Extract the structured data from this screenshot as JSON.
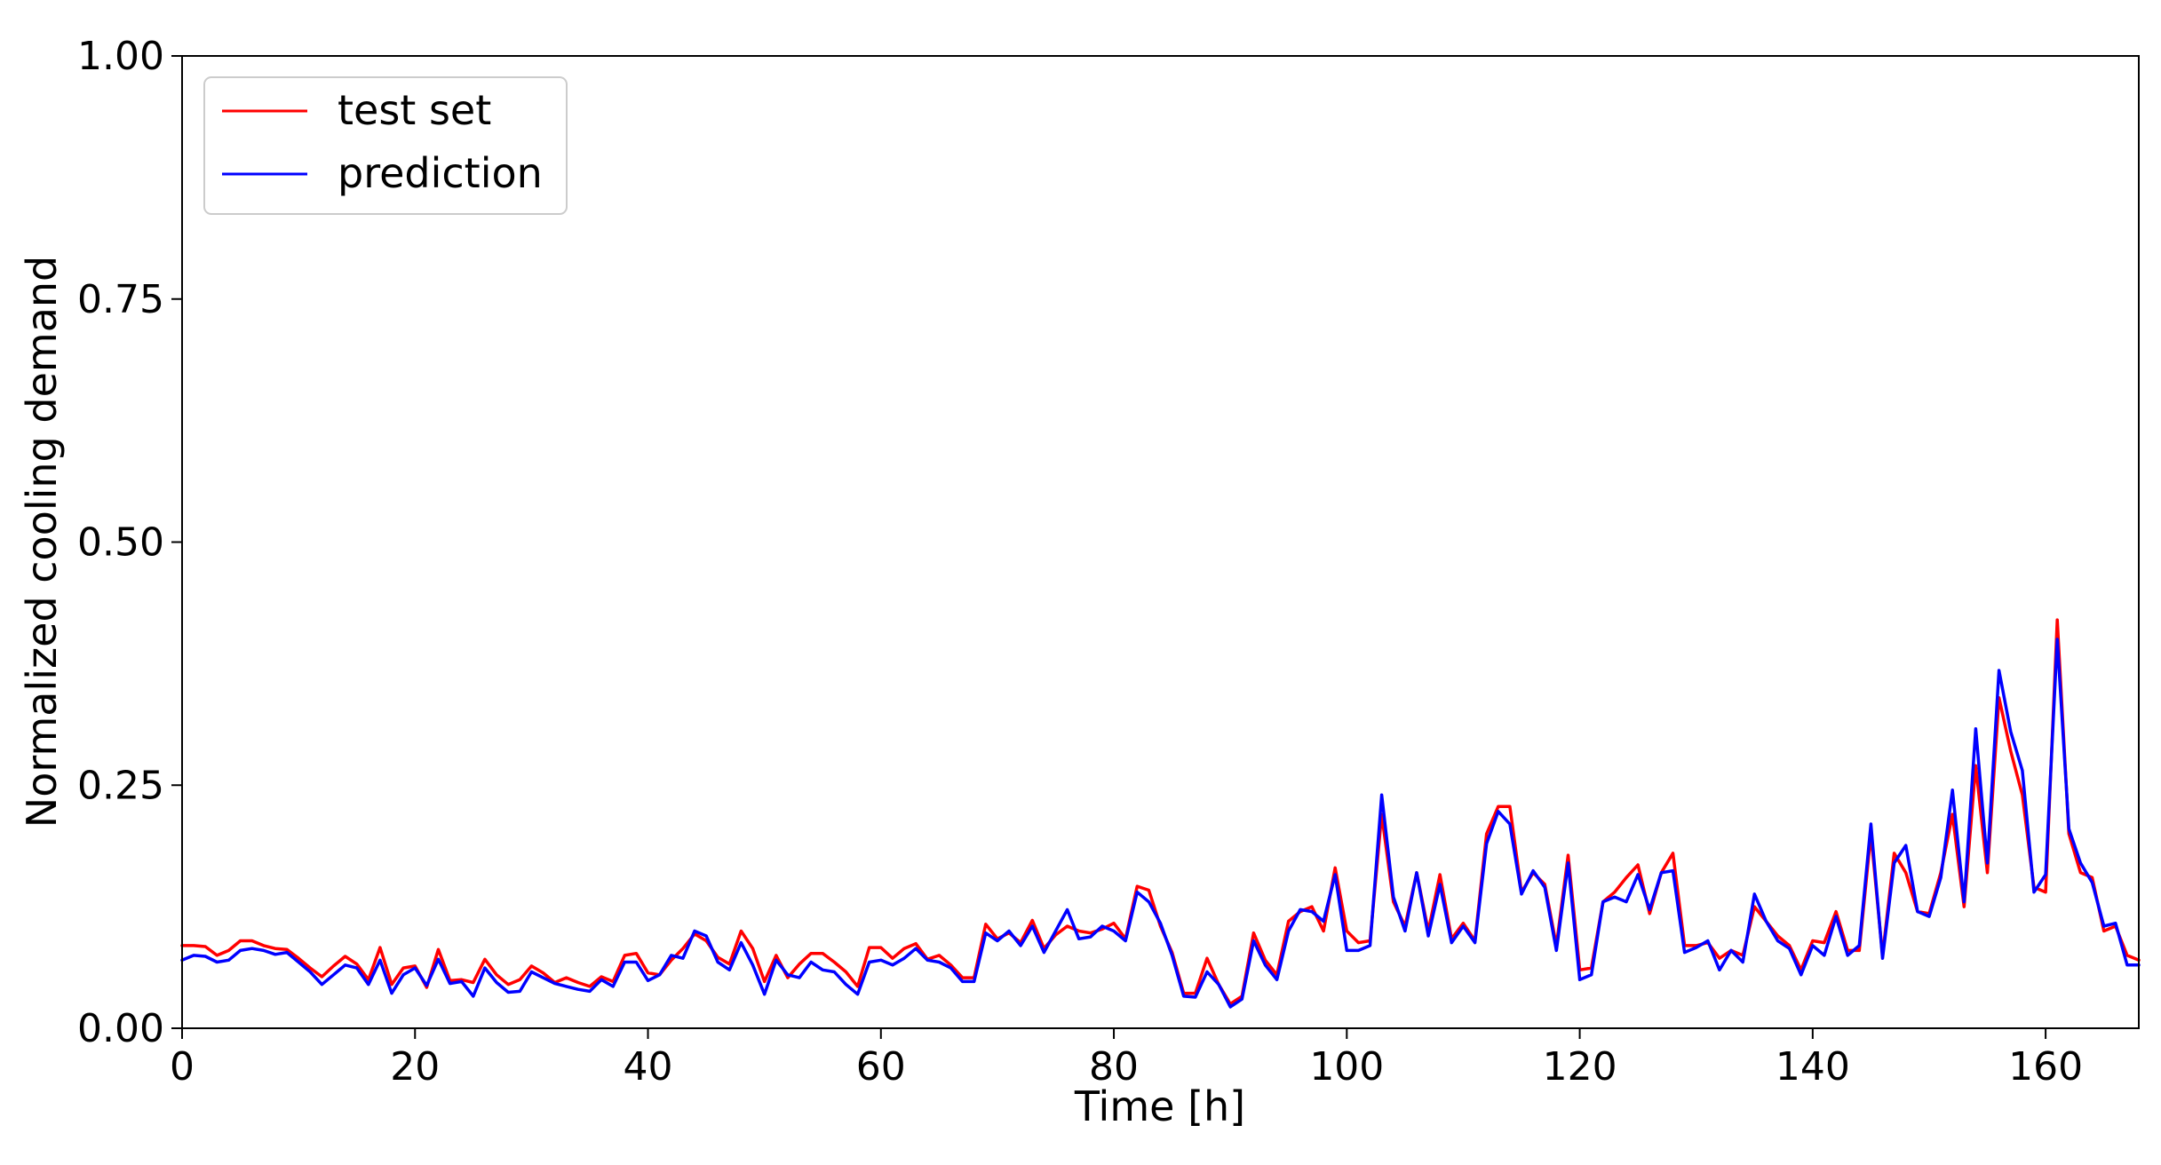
{
  "chart_data": {
    "type": "line",
    "title": "",
    "xlabel": "Time [h]",
    "ylabel": "Normalized cooling demand",
    "xlim": [
      0,
      168
    ],
    "ylim": [
      0,
      1
    ],
    "x_ticks": [
      0,
      20,
      40,
      60,
      80,
      100,
      120,
      140,
      160
    ],
    "x_tick_labels": [
      "0",
      "20",
      "40",
      "60",
      "80",
      "100",
      "120",
      "140",
      "160"
    ],
    "y_ticks": [
      0,
      0.25,
      0.5,
      0.75,
      1.0
    ],
    "y_tick_labels": [
      "0.00",
      "0.25",
      "0.50",
      "0.75",
      "1.00"
    ],
    "grid": false,
    "legend_position": "top-left",
    "x": [
      0,
      1,
      2,
      3,
      4,
      5,
      6,
      7,
      8,
      9,
      10,
      11,
      12,
      13,
      14,
      15,
      16,
      17,
      18,
      19,
      20,
      21,
      22,
      23,
      24,
      25,
      26,
      27,
      28,
      29,
      30,
      31,
      32,
      33,
      34,
      35,
      36,
      37,
      38,
      39,
      40,
      41,
      42,
      43,
      44,
      45,
      46,
      47,
      48,
      49,
      50,
      51,
      52,
      53,
      54,
      55,
      56,
      57,
      58,
      59,
      60,
      61,
      62,
      63,
      64,
      65,
      66,
      67,
      68,
      69,
      70,
      71,
      72,
      73,
      74,
      75,
      76,
      77,
      78,
      79,
      80,
      81,
      82,
      83,
      84,
      85,
      86,
      87,
      88,
      89,
      90,
      91,
      92,
      93,
      94,
      95,
      96,
      97,
      98,
      99,
      100,
      101,
      102,
      103,
      104,
      105,
      106,
      107,
      108,
      109,
      110,
      111,
      112,
      113,
      114,
      115,
      116,
      117,
      118,
      119,
      120,
      121,
      122,
      123,
      124,
      125,
      126,
      127,
      128,
      129,
      130,
      131,
      132,
      133,
      134,
      135,
      136,
      137,
      138,
      139,
      140,
      141,
      142,
      143,
      144,
      145,
      146,
      147,
      148,
      149,
      150,
      151,
      152,
      153,
      154,
      155,
      156,
      157,
      158,
      159,
      160,
      161,
      162,
      163,
      164,
      165,
      166,
      167,
      168
    ],
    "series": [
      {
        "name": "test set",
        "color": "#ff0000",
        "values": [
          0.085,
          0.085,
          0.084,
          0.075,
          0.08,
          0.09,
          0.09,
          0.085,
          0.082,
          0.081,
          0.072,
          0.062,
          0.053,
          0.064,
          0.074,
          0.066,
          0.05,
          0.083,
          0.045,
          0.062,
          0.064,
          0.042,
          0.081,
          0.049,
          0.05,
          0.047,
          0.071,
          0.055,
          0.045,
          0.05,
          0.064,
          0.057,
          0.047,
          0.052,
          0.047,
          0.043,
          0.053,
          0.048,
          0.075,
          0.077,
          0.057,
          0.055,
          0.07,
          0.082,
          0.097,
          0.09,
          0.073,
          0.066,
          0.1,
          0.082,
          0.048,
          0.075,
          0.052,
          0.066,
          0.077,
          0.077,
          0.068,
          0.058,
          0.043,
          0.083,
          0.083,
          0.072,
          0.082,
          0.087,
          0.071,
          0.075,
          0.065,
          0.052,
          0.052,
          0.107,
          0.092,
          0.098,
          0.088,
          0.111,
          0.082,
          0.096,
          0.105,
          0.1,
          0.098,
          0.102,
          0.108,
          0.092,
          0.146,
          0.142,
          0.105,
          0.078,
          0.036,
          0.036,
          0.072,
          0.045,
          0.025,
          0.033,
          0.098,
          0.07,
          0.055,
          0.11,
          0.12,
          0.125,
          0.1,
          0.165,
          0.1,
          0.088,
          0.09,
          0.22,
          0.13,
          0.105,
          0.16,
          0.1,
          0.158,
          0.092,
          0.108,
          0.09,
          0.2,
          0.228,
          0.228,
          0.14,
          0.16,
          0.148,
          0.085,
          0.178,
          0.06,
          0.062,
          0.13,
          0.14,
          0.155,
          0.168,
          0.118,
          0.16,
          0.18,
          0.085,
          0.085,
          0.088,
          0.072,
          0.08,
          0.075,
          0.125,
          0.11,
          0.095,
          0.085,
          0.06,
          0.09,
          0.088,
          0.12,
          0.08,
          0.08,
          0.2,
          0.075,
          0.18,
          0.16,
          0.12,
          0.118,
          0.16,
          0.22,
          0.125,
          0.27,
          0.16,
          0.34,
          0.285,
          0.24,
          0.145,
          0.14,
          0.42,
          0.2,
          0.16,
          0.155,
          0.1,
          0.105,
          0.075,
          0.07
        ]
      },
      {
        "name": "prediction",
        "color": "#0000ff",
        "values": [
          0.07,
          0.075,
          0.074,
          0.068,
          0.07,
          0.08,
          0.082,
          0.08,
          0.076,
          0.078,
          0.068,
          0.058,
          0.045,
          0.055,
          0.065,
          0.062,
          0.045,
          0.07,
          0.036,
          0.055,
          0.062,
          0.044,
          0.071,
          0.046,
          0.048,
          0.033,
          0.062,
          0.047,
          0.037,
          0.038,
          0.058,
          0.052,
          0.046,
          0.043,
          0.04,
          0.038,
          0.05,
          0.043,
          0.068,
          0.068,
          0.049,
          0.055,
          0.075,
          0.072,
          0.1,
          0.095,
          0.068,
          0.06,
          0.088,
          0.065,
          0.035,
          0.07,
          0.055,
          0.052,
          0.068,
          0.06,
          0.058,
          0.045,
          0.035,
          0.068,
          0.07,
          0.065,
          0.072,
          0.082,
          0.07,
          0.068,
          0.062,
          0.048,
          0.048,
          0.098,
          0.09,
          0.1,
          0.085,
          0.105,
          0.078,
          0.1,
          0.122,
          0.092,
          0.094,
          0.105,
          0.1,
          0.09,
          0.14,
          0.13,
          0.108,
          0.075,
          0.033,
          0.032,
          0.058,
          0.045,
          0.022,
          0.03,
          0.09,
          0.065,
          0.05,
          0.1,
          0.122,
          0.12,
          0.11,
          0.158,
          0.08,
          0.08,
          0.085,
          0.24,
          0.135,
          0.1,
          0.16,
          0.095,
          0.148,
          0.088,
          0.105,
          0.088,
          0.19,
          0.223,
          0.21,
          0.138,
          0.162,
          0.145,
          0.08,
          0.17,
          0.05,
          0.055,
          0.13,
          0.135,
          0.13,
          0.158,
          0.122,
          0.16,
          0.162,
          0.078,
          0.083,
          0.09,
          0.06,
          0.08,
          0.068,
          0.138,
          0.11,
          0.09,
          0.082,
          0.055,
          0.085,
          0.075,
          0.115,
          0.075,
          0.085,
          0.21,
          0.072,
          0.17,
          0.188,
          0.12,
          0.115,
          0.155,
          0.245,
          0.13,
          0.308,
          0.17,
          0.368,
          0.305,
          0.265,
          0.14,
          0.158,
          0.4,
          0.205,
          0.17,
          0.15,
          0.105,
          0.108,
          0.065,
          0.065
        ]
      }
    ]
  }
}
